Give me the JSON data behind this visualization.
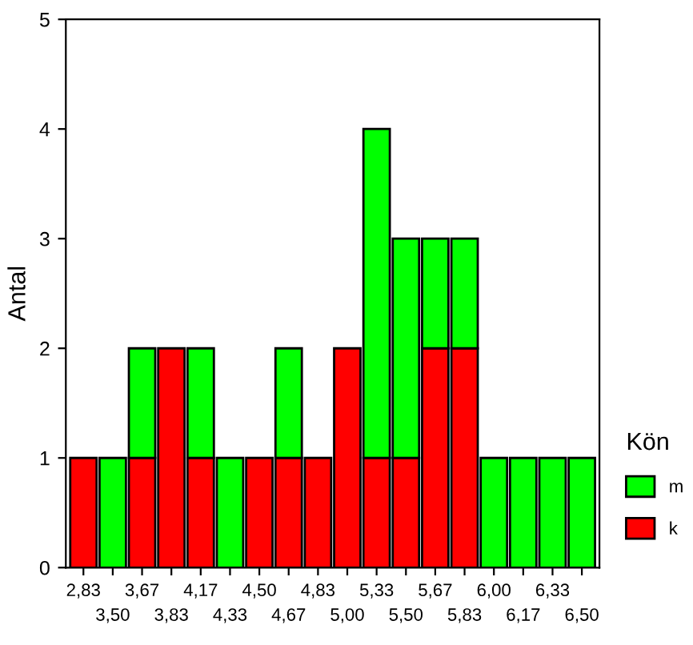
{
  "chart_data": {
    "type": "bar",
    "stacked": true,
    "ylabel": "Antal",
    "legend_title": "Kön",
    "legend": "right",
    "categories": [
      "2,83",
      "3,50",
      "3,67",
      "3,83",
      "4,17",
      "4,33",
      "4,50",
      "4,67",
      "4,83",
      "5,00",
      "5,33",
      "5,50",
      "5,67",
      "5,83",
      "6,00",
      "6,17",
      "6,33",
      "6,50"
    ],
    "series": [
      {
        "name": "k",
        "color": "#ff0000",
        "values": [
          1,
          null,
          1,
          2,
          1,
          null,
          1,
          1,
          1,
          2,
          1,
          1,
          2,
          2,
          null,
          null,
          null,
          null
        ]
      },
      {
        "name": "m",
        "color": "#00ff00",
        "values": [
          null,
          1,
          1,
          null,
          1,
          1,
          null,
          1,
          null,
          null,
          3,
          2,
          1,
          1,
          1,
          1,
          1,
          1
        ]
      }
    ],
    "ylim": [
      0,
      5
    ],
    "yticks": [
      0,
      1,
      2,
      3,
      4,
      5
    ],
    "grid": false
  }
}
